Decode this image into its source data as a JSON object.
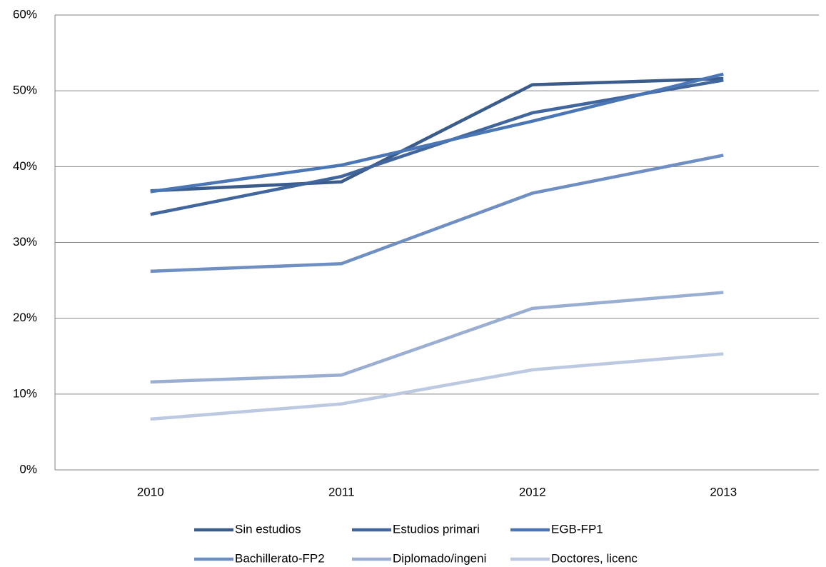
{
  "chart_data": {
    "type": "line",
    "categories": [
      "2010",
      "2011",
      "2012",
      "2013"
    ],
    "series": [
      {
        "name": "Sin estudios",
        "color": "#3b5b8b",
        "values": [
          36.8,
          38.0,
          50.8,
          51.6
        ]
      },
      {
        "name": "Estudios primari",
        "color": "#41669d",
        "values": [
          33.7,
          38.7,
          47.1,
          51.4
        ]
      },
      {
        "name": "EGB-FP1",
        "color": "#4a76b5",
        "values": [
          36.7,
          40.2,
          46.0,
          52.2
        ]
      },
      {
        "name": "Bachillerato-FP2",
        "color": "#6f8fc2",
        "values": [
          26.2,
          27.2,
          36.5,
          41.5
        ]
      },
      {
        "name": "Diplomado/ingeni",
        "color": "#9aaed2",
        "values": [
          11.6,
          12.5,
          21.3,
          23.4
        ]
      },
      {
        "name": "Doctores, licenc",
        "color": "#bdc9e1",
        "values": [
          6.7,
          8.7,
          13.2,
          15.3
        ]
      }
    ],
    "ylim": [
      0,
      60
    ],
    "yticks": [
      {
        "value": 0,
        "label": "0%"
      },
      {
        "value": 10,
        "label": "10%"
      },
      {
        "value": 20,
        "label": "20%"
      },
      {
        "value": 30,
        "label": "30%"
      },
      {
        "value": 40,
        "label": "40%"
      },
      {
        "value": 50,
        "label": "50%"
      },
      {
        "value": 60,
        "label": "60%"
      }
    ],
    "grid": true
  }
}
